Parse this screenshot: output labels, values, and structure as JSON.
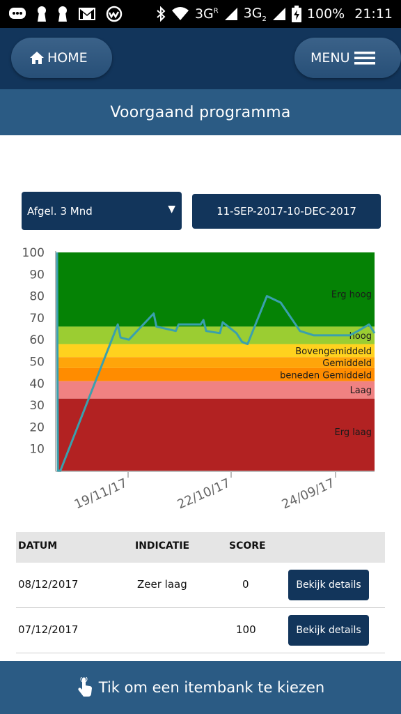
{
  "status_bar": {
    "network": "3G",
    "network_sim1_label": "R",
    "network2": "3G",
    "network2_sub": "2",
    "battery": "100%",
    "time": "21:11",
    "icons": [
      "chat-icon",
      "keyhole-icon",
      "keyhole-icon",
      "gmail-icon",
      "app-icon",
      "bluetooth-icon",
      "wifi-icon",
      "signal-icon",
      "signal-icon",
      "battery-charging-icon"
    ]
  },
  "header": {
    "home_label": "HOME",
    "menu_label": "MENU"
  },
  "page": {
    "title": "Voorgaand programma"
  },
  "filters": {
    "period_selected": "Afgel. 3 Mnd",
    "date_range": "11-SEP-2017-10-DEC-2017"
  },
  "chart_data": {
    "type": "line",
    "ylim": [
      0,
      100
    ],
    "yticks": [
      100,
      90,
      80,
      70,
      60,
      50,
      40,
      30,
      20,
      10
    ],
    "xtick_labels": [
      "19/11/17",
      "22/10/17",
      "24/09/17"
    ],
    "x_direction": "newest-left",
    "bands": [
      {
        "label": "Erg hoog",
        "from": 66,
        "to": 100,
        "color": "#058205"
      },
      {
        "label": "hoog",
        "from": 58,
        "to": 66,
        "color": "#9bcd32"
      },
      {
        "label": "Bovengemiddeld",
        "from": 52,
        "to": 58,
        "color": "#ffd21e"
      },
      {
        "label": "Gemiddeld",
        "from": 47,
        "to": 52,
        "color": "#ffa50a"
      },
      {
        "label": "beneden Gemiddeld",
        "from": 41,
        "to": 47,
        "color": "#ff8c00"
      },
      {
        "label": "Laag",
        "from": 33,
        "to": 41,
        "color": "#f08282"
      },
      {
        "label": "Erg laag",
        "from": 0,
        "to": 33,
        "color": "#b22222"
      }
    ],
    "series": [
      {
        "color": "#3aa0ad",
        "points": [
          [
            0,
            100
          ],
          [
            0.3,
            0
          ],
          [
            1.2,
            0
          ],
          [
            22,
            67
          ],
          [
            23,
            61
          ],
          [
            26,
            60
          ],
          [
            35,
            72
          ],
          [
            36,
            66
          ],
          [
            43,
            64
          ],
          [
            44,
            67
          ],
          [
            52,
            67
          ],
          [
            53,
            69
          ],
          [
            54,
            64
          ],
          [
            59,
            63
          ],
          [
            60,
            68
          ],
          [
            65,
            63
          ],
          [
            67,
            59
          ],
          [
            69,
            58
          ],
          [
            76,
            80
          ],
          [
            81,
            77
          ],
          [
            88,
            64
          ],
          [
            93,
            62
          ],
          [
            100,
            62
          ],
          [
            106,
            62
          ],
          [
            109,
            64
          ],
          [
            113,
            67
          ],
          [
            115,
            63
          ]
        ],
        "x_range": [
          0,
          115
        ]
      }
    ]
  },
  "table": {
    "headers": [
      "DATUM",
      "INDICATIE",
      "SCORE"
    ],
    "rows": [
      {
        "datum": "08/12/2017",
        "indicatie": "Zeer laag",
        "score": "0",
        "action": "Bekijk details"
      },
      {
        "datum": "07/12/2017",
        "indicatie": "",
        "score": "100",
        "action": "Bekijk details"
      }
    ]
  },
  "footer": {
    "label": "Tik om een itembank te kiezen"
  }
}
